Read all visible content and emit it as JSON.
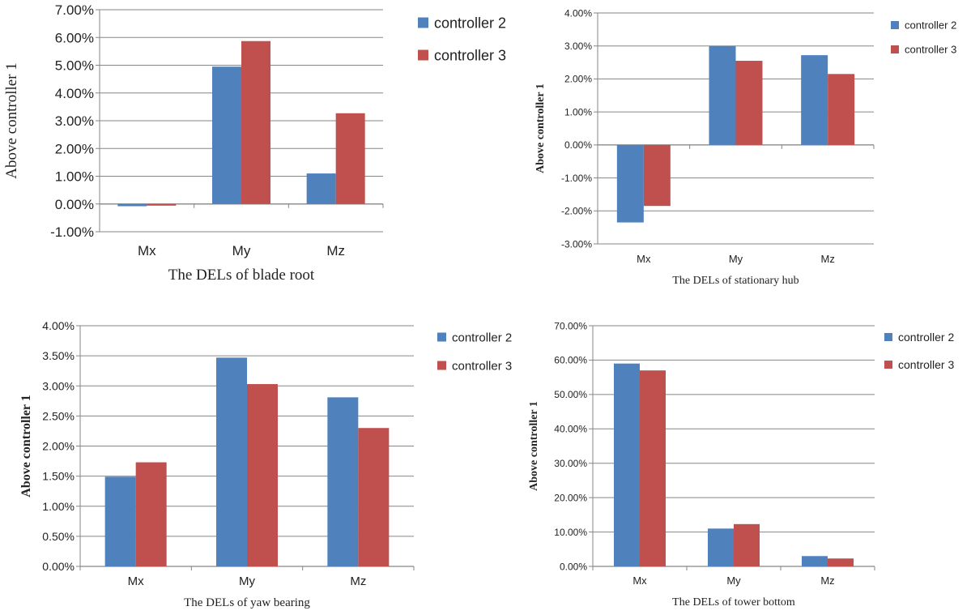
{
  "colors": {
    "series": [
      "#4F81BD",
      "#C0504D"
    ],
    "axis": "#868686",
    "grid": "#868686"
  },
  "chart_data": [
    {
      "type": "bar",
      "title": "The DELs of blade root",
      "ylabel": "Above controller 1",
      "categories": [
        "Mx",
        "My",
        "Mz"
      ],
      "series": [
        {
          "name": "controller 2",
          "values": [
            -0.08,
            4.95,
            1.1
          ]
        },
        {
          "name": "controller 3",
          "values": [
            -0.06,
            5.87,
            3.27
          ]
        }
      ],
      "ylim": [
        -1,
        7
      ],
      "ytick_step": 1,
      "ytick_decimals": 2,
      "unit": "%",
      "grid": true,
      "legend": "right"
    },
    {
      "type": "bar",
      "title": "The DELs of stationary hub",
      "ylabel": "Above controller 1",
      "categories": [
        "Mx",
        "My",
        "Mz"
      ],
      "series": [
        {
          "name": "controller 2",
          "values": [
            -2.35,
            3.0,
            2.72
          ]
        },
        {
          "name": "controller 3",
          "values": [
            -1.85,
            2.55,
            2.15
          ]
        }
      ],
      "ylim": [
        -3,
        4
      ],
      "ytick_step": 1,
      "ytick_decimals": 2,
      "unit": "%",
      "grid": true,
      "legend": "right"
    },
    {
      "type": "bar",
      "title": "The DELs of yaw bearing",
      "ylabel": "Above controller 1",
      "categories": [
        "Mx",
        "My",
        "Mz"
      ],
      "series": [
        {
          "name": "controller 2",
          "values": [
            1.49,
            3.47,
            2.81
          ]
        },
        {
          "name": "controller 3",
          "values": [
            1.73,
            3.03,
            2.3
          ]
        }
      ],
      "ylim": [
        0,
        4
      ],
      "ytick_step": 0.5,
      "ytick_decimals": 2,
      "unit": "%",
      "grid": true,
      "legend": "right"
    },
    {
      "type": "bar",
      "title": "The DELs of tower bottom",
      "ylabel": "Above controller 1",
      "categories": [
        "Mx",
        "My",
        "Mz"
      ],
      "series": [
        {
          "name": "controller 2",
          "values": [
            59.0,
            11.0,
            3.0
          ]
        },
        {
          "name": "controller 3",
          "values": [
            57.0,
            12.3,
            2.3
          ]
        }
      ],
      "ylim": [
        0,
        70
      ],
      "ytick_step": 10,
      "ytick_decimals": 2,
      "unit": "%",
      "grid": true,
      "legend": "right"
    }
  ]
}
